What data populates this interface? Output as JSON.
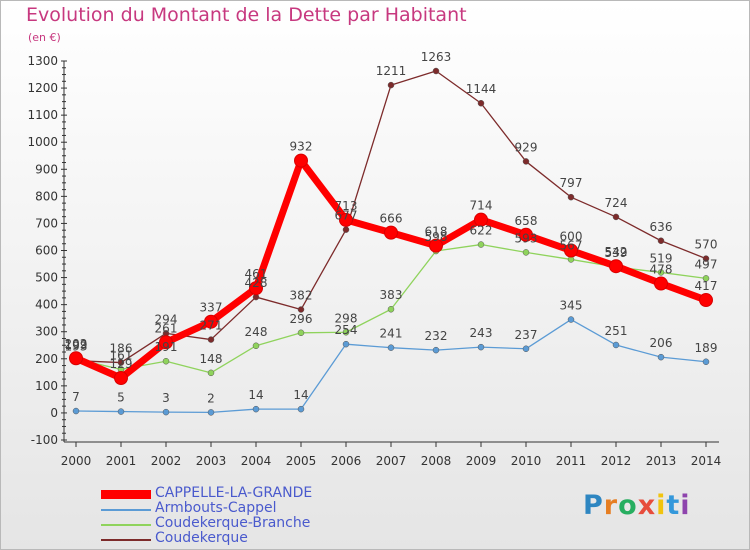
{
  "title": "Evolution du Montant de la Dette par Habitant",
  "subtitle": "(en €)",
  "logo": "Proxiti",
  "logo_colors": [
    "#2e86c1",
    "#e67e22",
    "#27ae60",
    "#e74c3c",
    "#f1c40f",
    "#3498db",
    "#8e44ad"
  ],
  "chart_data": {
    "type": "line",
    "x": [
      "2000",
      "2001",
      "2002",
      "2003",
      "2004",
      "2005",
      "2006",
      "2007",
      "2008",
      "2009",
      "2010",
      "2011",
      "2012",
      "2013",
      "2014"
    ],
    "ylim": [
      -100,
      1300
    ],
    "yticks": [
      "-100",
      "0",
      "100",
      "200",
      "300",
      "400",
      "500",
      "600",
      "700",
      "800",
      "900",
      "1000",
      "1100",
      "1200",
      "1300"
    ],
    "grid": false,
    "legend": "bottom-left",
    "series": [
      {
        "name": "CAPPELLE-LA-GRANDE",
        "color": "#ff0000",
        "values": [
          202,
          129,
          261,
          337,
          461,
          932,
          713,
          666,
          618,
          714,
          658,
          600,
          542,
          478,
          417
        ],
        "labels": [
          "202",
          "129",
          "261",
          "337",
          "461",
          "932",
          "713",
          "666",
          "618",
          "714",
          "658",
          "600",
          "542",
          "478",
          "417"
        ]
      },
      {
        "name": "Armbouts-Cappel",
        "color": "#5b9bd5",
        "values": [
          7,
          5,
          3,
          2,
          14,
          14,
          254,
          241,
          232,
          243,
          237,
          345,
          251,
          206,
          189
        ],
        "labels": [
          "7",
          "5",
          "3",
          "2",
          "14",
          "14",
          "254",
          "241",
          "232",
          "243",
          "237",
          "345",
          "251",
          "206",
          "189"
        ]
      },
      {
        "name": "Coudekerque-Branche",
        "color": "#8fd35c",
        "values": [
          199,
          161,
          191,
          148,
          248,
          296,
          298,
          383,
          598,
          622,
          593,
          567,
          539,
          519,
          497
        ],
        "labels": [
          "199",
          "161",
          "191",
          "148",
          "248",
          "296",
          "298",
          "383",
          "598",
          "622",
          "593",
          "567",
          "539",
          "519",
          "497"
        ]
      },
      {
        "name": "Coudekerque",
        "color": "#7d2b2b",
        "values": [
          193,
          186,
          294,
          271,
          428,
          382,
          677,
          1211,
          1263,
          1144,
          929,
          797,
          724,
          636,
          570
        ],
        "labels": [
          "193",
          "186",
          "294",
          "271",
          "428",
          "382",
          "677",
          "1211",
          "1263",
          "1144",
          "929",
          "797",
          "724",
          "636",
          "570"
        ]
      }
    ]
  }
}
